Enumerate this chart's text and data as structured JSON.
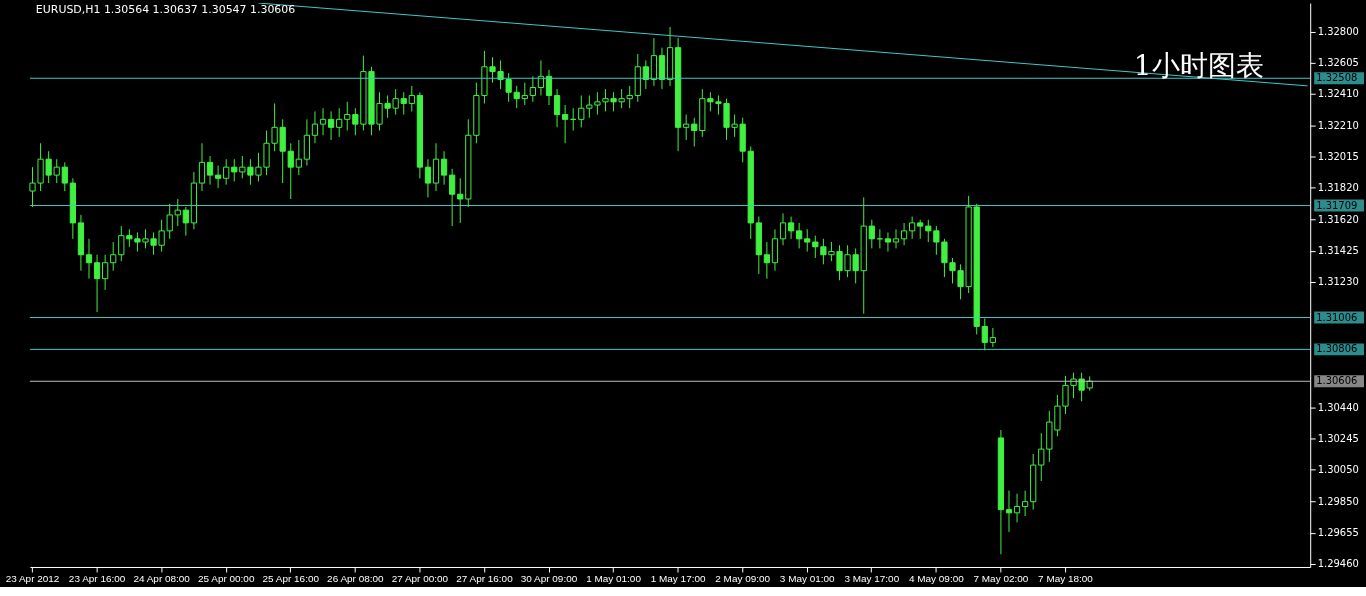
{
  "chart_data": {
    "type": "candlestick",
    "title": "EURUSD,H1  1.30564 1.30637 1.30547 1.30606",
    "annotations": [
      "1小时图表"
    ],
    "color": "#40f040",
    "categories": [
      "23 Apr 2012",
      null,
      null,
      null,
      null,
      null,
      null,
      null,
      "23 Apr 16:00",
      null,
      null,
      null,
      null,
      null,
      null,
      null,
      "24 Apr 08:00",
      null,
      null,
      null,
      null,
      null,
      null,
      null,
      "25 Apr 00:00",
      null,
      null,
      null,
      null,
      null,
      null,
      null,
      "25 Apr 16:00",
      null,
      null,
      null,
      null,
      null,
      null,
      null,
      "26 Apr 08:00",
      null,
      null,
      null,
      null,
      null,
      null,
      null,
      "27 Apr 00:00",
      null,
      null,
      null,
      null,
      null,
      null,
      null,
      "27 Apr 16:00",
      null,
      null,
      null,
      null,
      null,
      null,
      null,
      "30 Apr 09:00",
      null,
      null,
      null,
      null,
      null,
      null,
      null,
      "1 May 01:00",
      null,
      null,
      null,
      null,
      null,
      null,
      null,
      "1 May 17:00",
      null,
      null,
      null,
      null,
      null,
      null,
      null,
      "2 May 09:00",
      null,
      null,
      null,
      null,
      null,
      null,
      null,
      "3 May 01:00",
      null,
      null,
      null,
      null,
      null,
      null,
      null,
      "3 May 17:00",
      null,
      null,
      null,
      null,
      null,
      null,
      null,
      "4 May 09:00",
      null,
      null,
      null,
      null,
      null,
      null,
      null,
      "7 May 02:00",
      null,
      null,
      null,
      null,
      null,
      null,
      null,
      "7 May 18:00",
      null,
      null,
      null,
      null,
      null,
      null,
      null,
      null,
      null,
      null,
      null,
      null,
      null,
      null,
      null,
      null,
      null,
      null,
      null,
      null,
      null,
      null,
      null,
      null,
      null,
      null,
      null,
      null,
      null,
      null
    ],
    "ohlc": [
      [
        1.318,
        1.3195,
        1.317,
        1.3185
      ],
      [
        1.3185,
        1.321,
        1.318,
        1.32
      ],
      [
        1.32,
        1.3205,
        1.3185,
        1.319
      ],
      [
        1.319,
        1.32,
        1.3185,
        1.3195
      ],
      [
        1.3195,
        1.3198,
        1.318,
        1.3185
      ],
      [
        1.3185,
        1.3188,
        1.315,
        1.316
      ],
      [
        1.316,
        1.3165,
        1.313,
        1.314
      ],
      [
        1.314,
        1.315,
        1.3125,
        1.3135
      ],
      [
        1.3135,
        1.314,
        1.3104,
        1.3125
      ],
      [
        1.3125,
        1.314,
        1.3118,
        1.3135
      ],
      [
        1.3135,
        1.3148,
        1.313,
        1.314
      ],
      [
        1.314,
        1.3158,
        1.3136,
        1.3152
      ],
      [
        1.3152,
        1.3156,
        1.3145,
        1.315
      ],
      [
        1.315,
        1.3154,
        1.3142,
        1.3148
      ],
      [
        1.3148,
        1.3156,
        1.3144,
        1.315
      ],
      [
        1.315,
        1.3154,
        1.314,
        1.3146
      ],
      [
        1.3146,
        1.3162,
        1.3142,
        1.3155
      ],
      [
        1.3155,
        1.3172,
        1.315,
        1.3165
      ],
      [
        1.3165,
        1.3175,
        1.3158,
        1.3168
      ],
      [
        1.3168,
        1.317,
        1.3152,
        1.316
      ],
      [
        1.316,
        1.3192,
        1.3156,
        1.3185
      ],
      [
        1.3185,
        1.321,
        1.318,
        1.3198
      ],
      [
        1.3198,
        1.3202,
        1.3184,
        1.319
      ],
      [
        1.319,
        1.3196,
        1.3182,
        1.3188
      ],
      [
        1.3188,
        1.32,
        1.3184,
        1.3195
      ],
      [
        1.3195,
        1.32,
        1.3186,
        1.3192
      ],
      [
        1.3192,
        1.3202,
        1.3188,
        1.3195
      ],
      [
        1.3195,
        1.32,
        1.3184,
        1.319
      ],
      [
        1.319,
        1.3204,
        1.3186,
        1.3195
      ],
      [
        1.3195,
        1.3218,
        1.319,
        1.321
      ],
      [
        1.321,
        1.3235,
        1.3205,
        1.322
      ],
      [
        1.322,
        1.3225,
        1.3185,
        1.3205
      ],
      [
        1.3205,
        1.321,
        1.3175,
        1.3195
      ],
      [
        1.3195,
        1.3212,
        1.319,
        1.32
      ],
      [
        1.32,
        1.3225,
        1.3196,
        1.3215
      ],
      [
        1.3215,
        1.323,
        1.321,
        1.3222
      ],
      [
        1.3222,
        1.3232,
        1.3215,
        1.3225
      ],
      [
        1.3225,
        1.323,
        1.3212,
        1.322
      ],
      [
        1.322,
        1.3232,
        1.3214,
        1.3225
      ],
      [
        1.3225,
        1.3236,
        1.3218,
        1.3228
      ],
      [
        1.3228,
        1.3232,
        1.3215,
        1.3222
      ],
      [
        1.3222,
        1.3265,
        1.3218,
        1.3255
      ],
      [
        1.3255,
        1.3258,
        1.3215,
        1.3222
      ],
      [
        1.3222,
        1.3242,
        1.3218,
        1.3235
      ],
      [
        1.3235,
        1.324,
        1.3226,
        1.3232
      ],
      [
        1.3232,
        1.3244,
        1.3228,
        1.3238
      ],
      [
        1.3238,
        1.3242,
        1.3228,
        1.3235
      ],
      [
        1.3235,
        1.3246,
        1.323,
        1.324
      ],
      [
        1.324,
        1.3242,
        1.3188,
        1.3195
      ],
      [
        1.3195,
        1.32,
        1.3176,
        1.3185
      ],
      [
        1.3185,
        1.321,
        1.318,
        1.32
      ],
      [
        1.32,
        1.3205,
        1.3184,
        1.319
      ],
      [
        1.319,
        1.3194,
        1.3158,
        1.3178
      ],
      [
        1.3178,
        1.3188,
        1.316,
        1.3175
      ],
      [
        1.3175,
        1.3225,
        1.317,
        1.3215
      ],
      [
        1.3215,
        1.3248,
        1.321,
        1.324
      ],
      [
        1.324,
        1.3268,
        1.3235,
        1.3258
      ],
      [
        1.3258,
        1.3264,
        1.3248,
        1.3255
      ],
      [
        1.3255,
        1.3262,
        1.3244,
        1.325
      ],
      [
        1.325,
        1.3254,
        1.3236,
        1.3242
      ],
      [
        1.3242,
        1.3246,
        1.3232,
        1.3238
      ],
      [
        1.3238,
        1.3248,
        1.3234,
        1.324
      ],
      [
        1.324,
        1.3252,
        1.3236,
        1.3245
      ],
      [
        1.3245,
        1.3262,
        1.324,
        1.3252
      ],
      [
        1.3252,
        1.3256,
        1.3234,
        1.324
      ],
      [
        1.324,
        1.3244,
        1.322,
        1.3228
      ],
      [
        1.3228,
        1.3234,
        1.321,
        1.3225
      ],
      [
        1.3225,
        1.3232,
        1.3218,
        1.3225
      ],
      [
        1.3225,
        1.324,
        1.322,
        1.3232
      ],
      [
        1.3232,
        1.324,
        1.3226,
        1.3234
      ],
      [
        1.3234,
        1.3242,
        1.3228,
        1.3236
      ],
      [
        1.3236,
        1.3244,
        1.323,
        1.3238
      ],
      [
        1.3238,
        1.3242,
        1.323,
        1.3236
      ],
      [
        1.3236,
        1.3244,
        1.3232,
        1.3238
      ],
      [
        1.3238,
        1.3246,
        1.3232,
        1.324
      ],
      [
        1.324,
        1.3266,
        1.3236,
        1.3258
      ],
      [
        1.3258,
        1.3262,
        1.3244,
        1.325
      ],
      [
        1.325,
        1.3276,
        1.3246,
        1.3265
      ],
      [
        1.3265,
        1.327,
        1.3244,
        1.325
      ],
      [
        1.325,
        1.3283,
        1.3246,
        1.327
      ],
      [
        1.327,
        1.3276,
        1.3205,
        1.322
      ],
      [
        1.322,
        1.3228,
        1.3212,
        1.3222
      ],
      [
        1.3222,
        1.3226,
        1.3208,
        1.3218
      ],
      [
        1.3218,
        1.3244,
        1.3214,
        1.3238
      ],
      [
        1.3238,
        1.3242,
        1.323,
        1.3236
      ],
      [
        1.3236,
        1.324,
        1.3228,
        1.3235
      ],
      [
        1.3235,
        1.3238,
        1.3212,
        1.322
      ],
      [
        1.322,
        1.3228,
        1.3214,
        1.3222
      ],
      [
        1.3222,
        1.3226,
        1.3198,
        1.3205
      ],
      [
        1.3205,
        1.3208,
        1.315,
        1.316
      ],
      [
        1.316,
        1.3164,
        1.3128,
        1.314
      ],
      [
        1.314,
        1.3148,
        1.3125,
        1.3135
      ],
      [
        1.3135,
        1.3156,
        1.313,
        1.315
      ],
      [
        1.315,
        1.3166,
        1.3146,
        1.316
      ],
      [
        1.316,
        1.3164,
        1.315,
        1.3155
      ],
      [
        1.3155,
        1.316,
        1.3144,
        1.315
      ],
      [
        1.315,
        1.3156,
        1.3142,
        1.3148
      ],
      [
        1.3148,
        1.3152,
        1.3138,
        1.3145
      ],
      [
        1.3145,
        1.315,
        1.3134,
        1.314
      ],
      [
        1.314,
        1.3148,
        1.3136,
        1.3142
      ],
      [
        1.3142,
        1.3146,
        1.3124,
        1.313
      ],
      [
        1.313,
        1.3146,
        1.3126,
        1.314
      ],
      [
        1.314,
        1.3144,
        1.3122,
        1.313
      ],
      [
        1.313,
        1.3176,
        1.3103,
        1.3158
      ],
      [
        1.3158,
        1.3162,
        1.3144,
        1.315
      ],
      [
        1.315,
        1.3156,
        1.3144,
        1.315
      ],
      [
        1.315,
        1.3154,
        1.3142,
        1.3148
      ],
      [
        1.3148,
        1.3156,
        1.3144,
        1.315
      ],
      [
        1.315,
        1.316,
        1.3146,
        1.3155
      ],
      [
        1.3155,
        1.3164,
        1.315,
        1.316
      ],
      [
        1.316,
        1.3162,
        1.315,
        1.3158
      ],
      [
        1.3158,
        1.3162,
        1.3148,
        1.3155
      ],
      [
        1.3155,
        1.3158,
        1.314,
        1.3148
      ],
      [
        1.3148,
        1.315,
        1.3126,
        1.3135
      ],
      [
        1.3135,
        1.3138,
        1.3122,
        1.313
      ],
      [
        1.313,
        1.3134,
        1.3112,
        1.312
      ],
      [
        1.312,
        1.3177,
        1.3116,
        1.317
      ],
      [
        1.317,
        1.3172,
        1.309,
        1.3095
      ],
      [
        1.3095,
        1.31,
        1.308,
        1.3085
      ],
      [
        1.3085,
        1.3094,
        1.3082,
        1.3088
      ],
      [
        1.3025,
        1.303,
        1.2952,
        1.298
      ],
      [
        1.298,
        1.2992,
        1.2966,
        1.2978
      ],
      [
        1.2978,
        1.299,
        1.2972,
        1.2982
      ],
      [
        1.2982,
        1.2992,
        1.2976,
        1.2985
      ],
      [
        1.2985,
        1.3015,
        1.298,
        1.3008
      ],
      [
        1.3008,
        1.3028,
        1.2998,
        1.3018
      ],
      [
        1.3018,
        1.3042,
        1.301,
        1.3035
      ],
      [
        1.303,
        1.3052,
        1.3026,
        1.3045
      ],
      [
        1.3045,
        1.3064,
        1.304,
        1.3058
      ],
      [
        1.3058,
        1.3066,
        1.305,
        1.3062
      ],
      [
        1.3062,
        1.3066,
        1.3048,
        1.3055
      ],
      [
        1.30564,
        1.30637,
        1.30547,
        1.30606
      ],
      null,
      null,
      null,
      null,
      null,
      null,
      null,
      null,
      null,
      null,
      null,
      null,
      null,
      null,
      null,
      null,
      null,
      null,
      null,
      null,
      null,
      null,
      null,
      null,
      null,
      null,
      null
    ],
    "series": [
      {
        "type": "line",
        "color": "#40c8c8",
        "values": [
          null,
          null,
          null,
          null,
          null,
          null,
          null,
          null,
          null,
          null,
          null,
          null,
          null,
          null,
          null,
          null,
          null,
          null,
          null,
          null,
          null,
          null,
          null,
          null,
          null,
          null,
          null,
          null,
          1.3298,
          null,
          null,
          null,
          null,
          null,
          null,
          null,
          null,
          null,
          null,
          null,
          null,
          null,
          null,
          null,
          null,
          null,
          null,
          null,
          null,
          null,
          null,
          null,
          null,
          null,
          null,
          null,
          null,
          null,
          null,
          null,
          null,
          null,
          null,
          null,
          null,
          null,
          null,
          null,
          null,
          null,
          null,
          null,
          null,
          null,
          null,
          null,
          null,
          null,
          null,
          null,
          null,
          null,
          null,
          null,
          null,
          null,
          null,
          null,
          null,
          null,
          null,
          null,
          null,
          null,
          null,
          null,
          null,
          null,
          null,
          null,
          null,
          null,
          null,
          null,
          null,
          null,
          null,
          null,
          null,
          null,
          null,
          null,
          null,
          null,
          null,
          null,
          null,
          null,
          null,
          null,
          null,
          null,
          null,
          null,
          null,
          null,
          null,
          null,
          null,
          null,
          null,
          null,
          null,
          null,
          null,
          null,
          null,
          null,
          null,
          null,
          null,
          null,
          null,
          null,
          null,
          null,
          null,
          null,
          null,
          null,
          null,
          null,
          null,
          null,
          null,
          null,
          null,
          null,
          1.3246
        ]
      }
    ],
    "ylim": [
      1.2944,
      1.3298
    ],
    "yticks": [
      {
        "value": 1.328,
        "label": "1.32800"
      },
      {
        "value": 1.32605,
        "label": "1.32605"
      },
      {
        "value": 1.3241,
        "label": "1.32410"
      },
      {
        "value": 1.3221,
        "label": "1.32210"
      },
      {
        "value": 1.32015,
        "label": "1.32015"
      },
      {
        "value": 1.3182,
        "label": "1.31820"
      },
      {
        "value": 1.3162,
        "label": "1.31620"
      },
      {
        "value": 1.31425,
        "label": "1.31425"
      },
      {
        "value": 1.3123,
        "label": "1.31230"
      },
      {
        "value": 1.3044,
        "label": "1.30440"
      },
      {
        "value": 1.30245,
        "label": "1.30245"
      },
      {
        "value": 1.3005,
        "label": "1.30050"
      },
      {
        "value": 1.2985,
        "label": "1.29850"
      },
      {
        "value": 1.29655,
        "label": "1.29655"
      },
      {
        "value": 1.2946,
        "label": "1.29460"
      }
    ],
    "ref_lines": [
      {
        "axis": "y",
        "value": 1.32508,
        "label": "1.32508",
        "color": "#40c8c8"
      },
      {
        "axis": "y",
        "value": 1.31709,
        "label": "1.31709",
        "color": "#40c8c8"
      },
      {
        "axis": "y",
        "value": 1.31006,
        "label": "1.31006",
        "color": "#40c8c8"
      },
      {
        "axis": "y",
        "value": 1.30806,
        "label": "1.30806",
        "color": "#40c8c8"
      },
      {
        "axis": "y",
        "value": 1.30606,
        "label": "1.30606",
        "color": "#c0c0c0"
      }
    ],
    "grid": false
  }
}
